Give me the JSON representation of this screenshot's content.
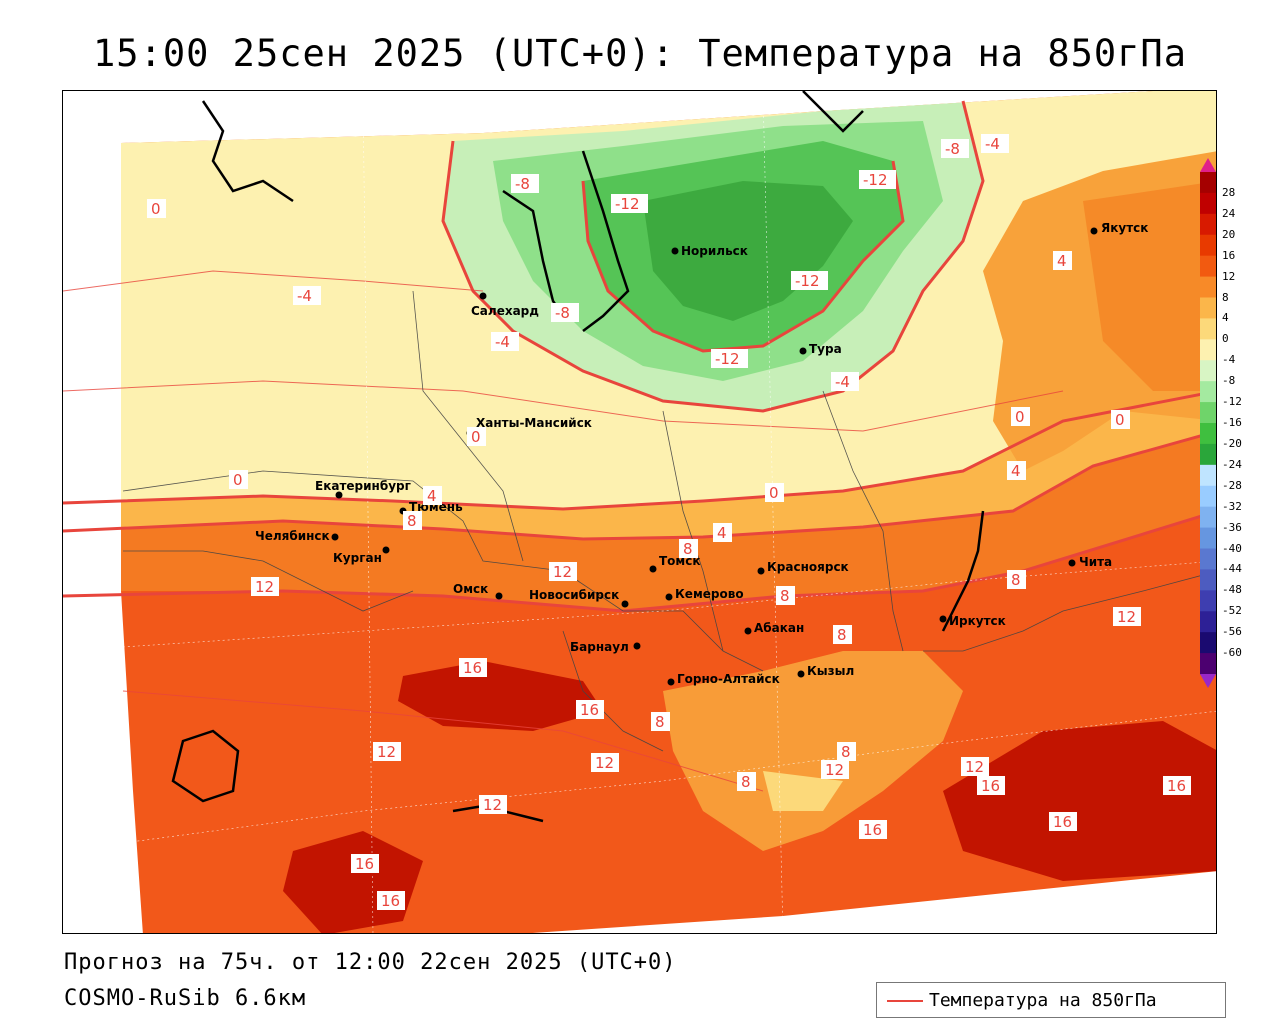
{
  "title": "15:00 25сен 2025 (UTC+0): Температура на 850гПа",
  "forecast_info": "Прогноз на 75ч. от 12:00 22сен 2025 (UTC+0)",
  "model": "COSMO-RuSib 6.6км",
  "legend": {
    "label": "Температура на 850гПа",
    "line_color": "#e8453c"
  },
  "colorbar": {
    "labels": [
      "28",
      "24",
      "20",
      "16",
      "12",
      "8",
      "4",
      "0",
      "-4",
      "-8",
      "-12",
      "-16",
      "-20",
      "-24",
      "-28",
      "-32",
      "-36",
      "-40",
      "-44",
      "-48",
      "-52",
      "-56",
      "-60"
    ],
    "colors": [
      "#a50000",
      "#c00000",
      "#d81a00",
      "#e83a00",
      "#f25a10",
      "#f88a28",
      "#fbb64a",
      "#fcd97a",
      "#fdf1b0",
      "#d8f5c4",
      "#a4eaa0",
      "#6fd46a",
      "#3fbf3f",
      "#2aa63a",
      "#bfe4ff",
      "#99ccff",
      "#7fb2f0",
      "#6696e0",
      "#5a78d0",
      "#4d5cc0",
      "#3e3eb0",
      "#2d2096",
      "#1a0a70",
      "#4c0070"
    ]
  },
  "cities": [
    {
      "name": "Норильск"
    },
    {
      "name": "Салехард"
    },
    {
      "name": "Якутск"
    },
    {
      "name": "Тура"
    },
    {
      "name": "Ханты-Мансийск"
    },
    {
      "name": "Екатеринбург"
    },
    {
      "name": "Тюмень"
    },
    {
      "name": "Челябинск"
    },
    {
      "name": "Курган"
    },
    {
      "name": "Омск"
    },
    {
      "name": "Новосибирск"
    },
    {
      "name": "Томск"
    },
    {
      "name": "Кемерово"
    },
    {
      "name": "Красноярск"
    },
    {
      "name": "Барнаул"
    },
    {
      "name": "Абакан"
    },
    {
      "name": "Горно-Алтайск"
    },
    {
      "name": "Кызыл"
    },
    {
      "name": "Иркутск"
    },
    {
      "name": "Чита"
    }
  ],
  "isotherm_labels": [
    "-12",
    "-12",
    "-12",
    "-12",
    "-8",
    "-8",
    "-8",
    "-4",
    "-4",
    "-4",
    "-4",
    "0",
    "0",
    "0",
    "0",
    "0",
    "0",
    "4",
    "4",
    "4",
    "4",
    "8",
    "8",
    "8",
    "8",
    "8",
    "8",
    "8",
    "8",
    "12",
    "12",
    "12",
    "12",
    "12",
    "12",
    "12",
    "12",
    "16",
    "16",
    "16",
    "16",
    "16",
    "16",
    "16",
    "16"
  ]
}
